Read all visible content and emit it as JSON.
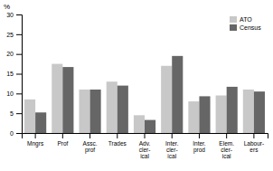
{
  "chart_data": {
    "type": "bar",
    "ylabel": "%",
    "categories": [
      "Mngrs",
      "Prof",
      "Assc.\nprof",
      "Trades",
      "Adv.\ncler-\nical",
      "Inter.\ncler-\nical",
      "Inter.\nprod",
      "Elem.\ncler-\nical",
      "Labour-\ners"
    ],
    "series": [
      {
        "name": "ATO",
        "color": "#c8c8c8",
        "values": [
          8.5,
          17.5,
          11.0,
          13.0,
          4.5,
          17.0,
          8.0,
          9.5,
          11.0
        ]
      },
      {
        "name": "Census",
        "color": "#666666",
        "values": [
          5.2,
          16.7,
          11.0,
          12.0,
          3.3,
          19.5,
          9.3,
          11.7,
          10.5
        ]
      }
    ],
    "ylim": [
      0,
      30
    ],
    "yticks": [
      0,
      5,
      10,
      15,
      20,
      25,
      30
    ],
    "grid": false,
    "legend": "upper-right"
  }
}
